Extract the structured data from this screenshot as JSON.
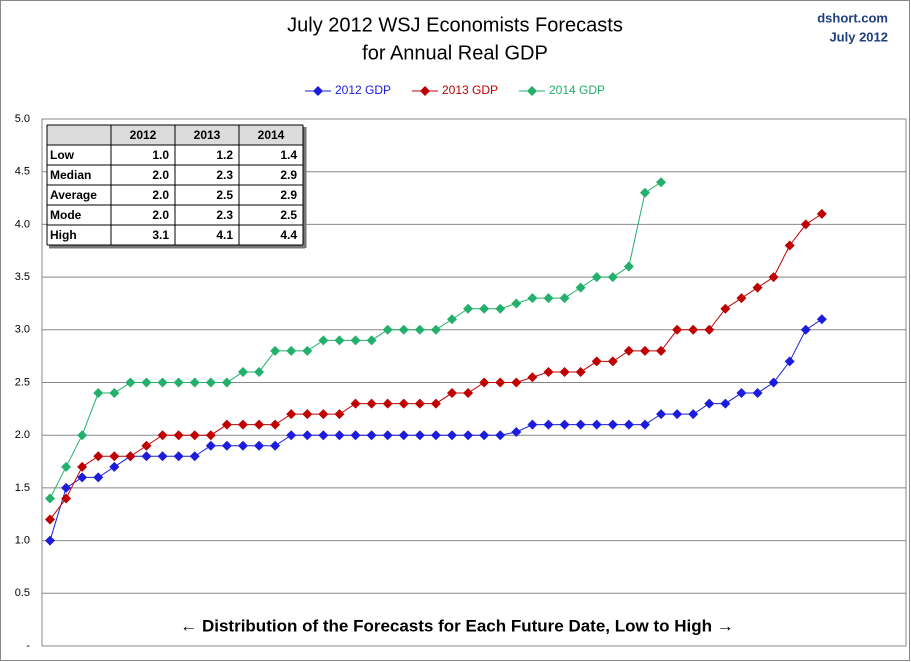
{
  "chart_data": {
    "type": "line",
    "title": [
      "July 2012 WSJ Economists Forecasts",
      "for Annual Real GDP"
    ],
    "source": [
      "dshort.com",
      "July 2012"
    ],
    "annotation": "← Distribution  of the Forecasts for Each Future Date, Low to High →",
    "ylim": [
      0,
      5
    ],
    "yticks": [
      {
        "value": 0,
        "label": "-"
      },
      0.5,
      {
        "value": 1,
        "label": "1.0"
      },
      1.5,
      {
        "value": 2,
        "label": "2.0"
      },
      2.5,
      {
        "value": 3,
        "label": "3.0"
      },
      3.5,
      {
        "value": 4,
        "label": "4.0"
      },
      4.5,
      {
        "value": 5,
        "label": "5.0"
      }
    ],
    "grid": true,
    "series": [
      {
        "name": "2012 GDP",
        "color": "#1c1cdc",
        "values": [
          1.0,
          1.5,
          1.6,
          1.6,
          1.7,
          1.8,
          1.8,
          1.8,
          1.8,
          1.8,
          1.9,
          1.9,
          1.9,
          1.9,
          1.9,
          2.0,
          2.0,
          2.0,
          2.0,
          2.0,
          2.0,
          2.0,
          2.0,
          2.0,
          2.0,
          2.0,
          2.0,
          2.0,
          2.0,
          2.03,
          2.1,
          2.1,
          2.1,
          2.1,
          2.1,
          2.1,
          2.1,
          2.1,
          2.2,
          2.2,
          2.2,
          2.3,
          2.3,
          2.4,
          2.4,
          2.5,
          2.7,
          3.0,
          3.1
        ]
      },
      {
        "name": "2013 GDP",
        "color": "#c00000",
        "values": [
          1.2,
          1.4,
          1.7,
          1.8,
          1.8,
          1.8,
          1.9,
          2.0,
          2.0,
          2.0,
          2.0,
          2.1,
          2.1,
          2.1,
          2.1,
          2.2,
          2.2,
          2.2,
          2.2,
          2.3,
          2.3,
          2.3,
          2.3,
          2.3,
          2.3,
          2.4,
          2.4,
          2.5,
          2.5,
          2.5,
          2.55,
          2.6,
          2.6,
          2.6,
          2.7,
          2.7,
          2.8,
          2.8,
          2.8,
          3.0,
          3.0,
          3.0,
          3.2,
          3.3,
          3.4,
          3.5,
          3.8,
          4.0,
          4.1
        ]
      },
      {
        "name": "2014 GDP",
        "color": "#22b06a",
        "values": [
          1.4,
          1.7,
          2.0,
          2.4,
          2.4,
          2.5,
          2.5,
          2.5,
          2.5,
          2.5,
          2.5,
          2.5,
          2.6,
          2.6,
          2.8,
          2.8,
          2.8,
          2.9,
          2.9,
          2.9,
          2.9,
          3.0,
          3.0,
          3.0,
          3.0,
          3.1,
          3.2,
          3.2,
          3.2,
          3.25,
          3.3,
          3.3,
          3.3,
          3.4,
          3.5,
          3.5,
          3.6,
          4.3,
          4.4,
          null,
          null,
          null,
          null,
          null,
          null,
          null,
          null,
          null,
          null
        ]
      }
    ],
    "legend": "top",
    "table": {
      "header": [
        "2012",
        "2013",
        "2014"
      ],
      "rows": [
        {
          "label": "Low",
          "cells": [
            "1.0",
            "1.2",
            "1.4"
          ]
        },
        {
          "label": "Median",
          "cells": [
            "2.0",
            "2.3",
            "2.9"
          ]
        },
        {
          "label": "Average",
          "cells": [
            "2.0",
            "2.5",
            "2.9"
          ]
        },
        {
          "label": "Mode",
          "cells": [
            "2.0",
            "2.3",
            "2.5"
          ]
        },
        {
          "label": "High",
          "cells": [
            "3.1",
            "4.1",
            "4.4"
          ]
        }
      ]
    }
  }
}
